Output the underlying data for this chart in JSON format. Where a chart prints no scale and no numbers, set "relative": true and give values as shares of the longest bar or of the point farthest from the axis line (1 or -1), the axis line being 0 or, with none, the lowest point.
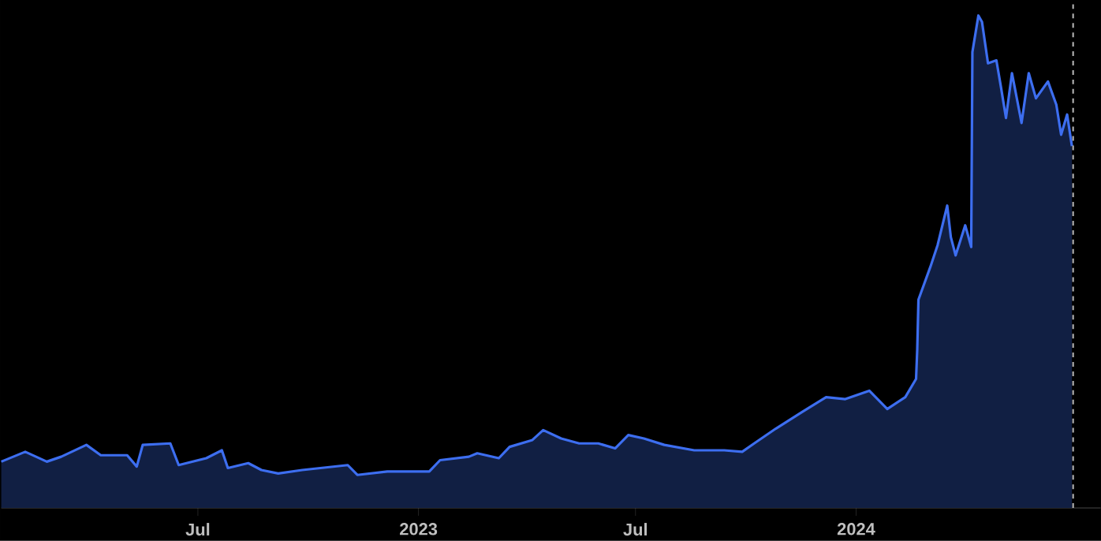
{
  "chart_data": {
    "type": "area",
    "relative": true,
    "x": [
      "2022-01-18",
      "2022-02-07",
      "2022-02-25",
      "2022-03-09",
      "2022-03-30",
      "2022-04-11",
      "2022-05-03",
      "2022-05-11",
      "2022-05-16",
      "2022-06-08",
      "2022-06-15",
      "2022-07-08",
      "2022-07-21",
      "2022-07-26",
      "2022-08-12",
      "2022-08-23",
      "2022-09-06",
      "2022-09-26",
      "2022-11-03",
      "2022-11-11",
      "2022-12-06",
      "2023-01-10",
      "2023-01-19",
      "2023-02-12",
      "2023-02-19",
      "2023-03-09",
      "2023-03-18",
      "2023-04-06",
      "2023-04-15",
      "2023-04-30",
      "2023-05-15",
      "2023-05-31",
      "2023-06-14",
      "2023-06-25",
      "2023-07-08",
      "2023-07-25",
      "2023-08-19",
      "2023-09-13",
      "2023-09-28",
      "2023-10-08",
      "2023-10-26",
      "2023-11-17",
      "2023-12-07",
      "2023-12-23",
      "2024-01-12",
      "2024-01-27",
      "2024-02-11",
      "2024-02-20",
      "2024-02-21",
      "2024-02-22",
      "2024-03-03",
      "2024-03-09",
      "2024-03-17",
      "2024-03-20",
      "2024-03-24",
      "2024-04-01",
      "2024-04-06",
      "2024-04-07",
      "2024-04-12",
      "2024-04-15",
      "2024-04-20",
      "2024-04-27",
      "2024-05-01",
      "2024-05-05",
      "2024-05-10",
      "2024-05-18",
      "2024-05-24",
      "2024-05-30",
      "2024-06-09",
      "2024-06-16",
      "2024-06-20",
      "2024-06-25",
      "2024-06-29"
    ],
    "series": [
      {
        "color": "#3d6ef0",
        "values": [
          0.094,
          0.114,
          0.094,
          0.104,
          0.128,
          0.107,
          0.107,
          0.084,
          0.128,
          0.131,
          0.087,
          0.101,
          0.117,
          0.081,
          0.091,
          0.077,
          0.07,
          0.077,
          0.087,
          0.067,
          0.074,
          0.074,
          0.097,
          0.104,
          0.111,
          0.101,
          0.124,
          0.138,
          0.158,
          0.141,
          0.131,
          0.131,
          0.121,
          0.148,
          0.141,
          0.128,
          0.117,
          0.117,
          0.114,
          0.131,
          0.161,
          0.195,
          0.225,
          0.221,
          0.238,
          0.201,
          0.225,
          0.262,
          0.322,
          0.423,
          0.49,
          0.534,
          0.614,
          0.55,
          0.513,
          0.574,
          0.53,
          0.926,
          1.0,
          0.987,
          0.903,
          0.909,
          0.852,
          0.792,
          0.883,
          0.782,
          0.883,
          0.832,
          0.866,
          0.819,
          0.758,
          0.799,
          0.735
        ]
      }
    ],
    "xlim": [
      "2022-01-18",
      "2024-07-23"
    ],
    "xticks": [
      {
        "value": "2022-07-01",
        "label": "Jul"
      },
      {
        "value": "2023-01-01",
        "label": "2023"
      },
      {
        "value": "2023-07-01",
        "label": "Jul"
      },
      {
        "value": "2024-01-01",
        "label": "2024"
      }
    ],
    "ref_lines": [
      {
        "axis": "x",
        "value": "2024-06-30",
        "color": "#bbbbbb",
        "line_style": "dashed"
      }
    ]
  }
}
